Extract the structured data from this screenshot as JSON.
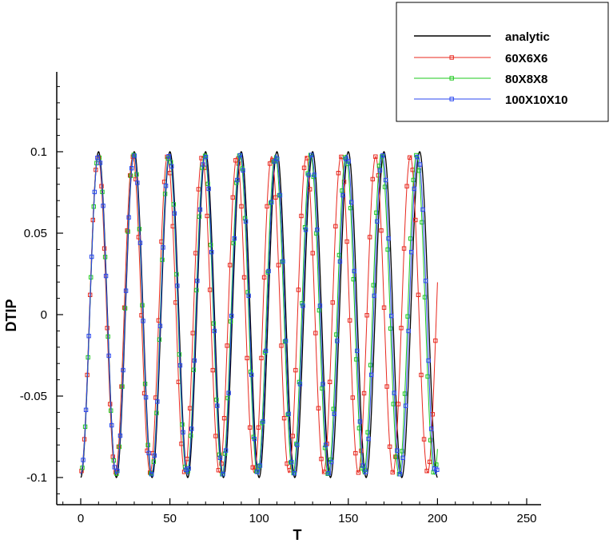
{
  "chart_data": {
    "type": "line",
    "xlabel": "T",
    "ylabel": "DTIP",
    "xlim": [
      -20,
      250
    ],
    "ylim": [
      -0.115,
      0.15
    ],
    "xticks": [
      0,
      50,
      100,
      150,
      200,
      250
    ],
    "xtick_labels": [
      "0",
      "50",
      "100",
      "150",
      "200",
      "250"
    ],
    "yticks": [
      -0.1,
      -0.05,
      0,
      0.05,
      0.1
    ],
    "ytick_labels": [
      "-0.1",
      "-0.05",
      "0",
      "0.05",
      "0.1"
    ],
    "legend_position": "top-right",
    "grid": false,
    "series": [
      {
        "name": "analytic",
        "color": "#000000",
        "marker": "none",
        "amplitude": 0.1,
        "period": 20.0,
        "t_start": 0,
        "t_end": 200,
        "phase": "starts at -0.1"
      },
      {
        "name": "60X6X6",
        "color": "#e8281e",
        "marker": "square",
        "amplitude": 0.097,
        "period": 19.45,
        "t_start": 0,
        "t_end": 200,
        "phase": "starts at -0.1"
      },
      {
        "name": "80X8X8",
        "color": "#1ec81e",
        "marker": "square",
        "amplitude": 0.098,
        "period": 19.82,
        "t_start": 0,
        "t_end": 200,
        "phase": "starts at -0.1"
      },
      {
        "name": "100X10X10",
        "color": "#2846f0",
        "marker": "square",
        "amplitude": 0.098,
        "period": 19.9,
        "t_start": 0,
        "t_end": 200,
        "phase": "starts at -0.1"
      }
    ]
  }
}
